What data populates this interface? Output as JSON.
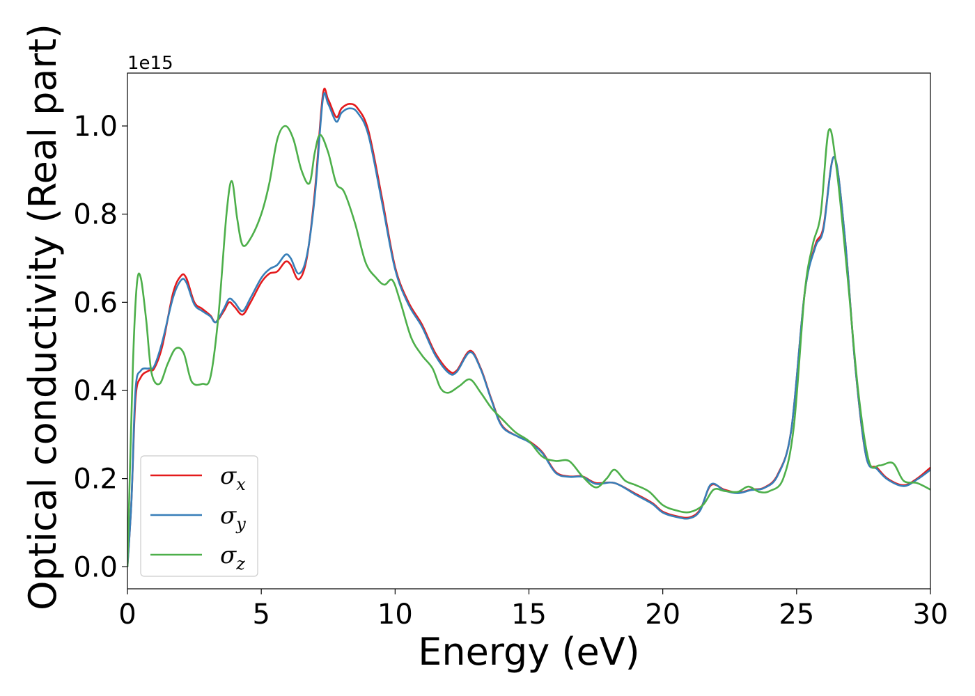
{
  "chart_data": {
    "type": "line",
    "xlabel": "Energy (eV)",
    "ylabel": "Optical conductivity (Real part)",
    "y_offset_text": "1e15",
    "xlim": [
      0,
      30
    ],
    "ylim": [
      -0.05,
      1.12
    ],
    "xticks": [
      0,
      5,
      10,
      15,
      20,
      25,
      30
    ],
    "xtick_labels": [
      "0",
      "5",
      "10",
      "15",
      "20",
      "25",
      "30"
    ],
    "yticks": [
      0.0,
      0.2,
      0.4,
      0.6,
      0.8,
      1.0
    ],
    "ytick_labels": [
      "0.0",
      "0.2",
      "0.4",
      "0.6",
      "0.8",
      "1.0"
    ],
    "grid": false,
    "legend_position": "lower-left",
    "series": [
      {
        "name": "σ",
        "subscript": "x",
        "color": "#e41a1c",
        "points": [
          [
            0,
            0
          ],
          [
            0.15,
            0.15
          ],
          [
            0.3,
            0.38
          ],
          [
            0.5,
            0.43
          ],
          [
            0.8,
            0.445
          ],
          [
            1.0,
            0.45
          ],
          [
            1.3,
            0.5
          ],
          [
            1.7,
            0.62
          ],
          [
            2.0,
            0.66
          ],
          [
            2.2,
            0.655
          ],
          [
            2.5,
            0.6
          ],
          [
            2.8,
            0.585
          ],
          [
            3.1,
            0.57
          ],
          [
            3.3,
            0.555
          ],
          [
            3.6,
            0.58
          ],
          [
            3.8,
            0.6
          ],
          [
            4.0,
            0.59
          ],
          [
            4.3,
            0.572
          ],
          [
            4.6,
            0.6
          ],
          [
            5.0,
            0.645
          ],
          [
            5.3,
            0.665
          ],
          [
            5.6,
            0.67
          ],
          [
            5.9,
            0.692
          ],
          [
            6.1,
            0.685
          ],
          [
            6.4,
            0.652
          ],
          [
            6.7,
            0.7
          ],
          [
            7.0,
            0.85
          ],
          [
            7.3,
            1.07
          ],
          [
            7.5,
            1.06
          ],
          [
            7.8,
            1.02
          ],
          [
            8.0,
            1.04
          ],
          [
            8.3,
            1.05
          ],
          [
            8.6,
            1.04
          ],
          [
            9.0,
            0.99
          ],
          [
            9.5,
            0.84
          ],
          [
            10.0,
            0.68
          ],
          [
            10.5,
            0.6
          ],
          [
            11.0,
            0.55
          ],
          [
            11.5,
            0.485
          ],
          [
            12.0,
            0.445
          ],
          [
            12.3,
            0.445
          ],
          [
            12.8,
            0.49
          ],
          [
            13.2,
            0.45
          ],
          [
            13.6,
            0.38
          ],
          [
            14.0,
            0.32
          ],
          [
            14.6,
            0.295
          ],
          [
            15.0,
            0.285
          ],
          [
            15.5,
            0.26
          ],
          [
            16.0,
            0.215
          ],
          [
            16.5,
            0.205
          ],
          [
            17.0,
            0.205
          ],
          [
            17.5,
            0.19
          ],
          [
            18.2,
            0.19
          ],
          [
            19.0,
            0.165
          ],
          [
            19.6,
            0.145
          ],
          [
            20.0,
            0.125
          ],
          [
            20.5,
            0.115
          ],
          [
            21.0,
            0.112
          ],
          [
            21.4,
            0.13
          ],
          [
            21.8,
            0.185
          ],
          [
            22.3,
            0.175
          ],
          [
            22.8,
            0.168
          ],
          [
            23.3,
            0.175
          ],
          [
            23.8,
            0.18
          ],
          [
            24.3,
            0.21
          ],
          [
            24.8,
            0.31
          ],
          [
            25.3,
            0.62
          ],
          [
            25.7,
            0.73
          ],
          [
            26.0,
            0.77
          ],
          [
            26.4,
            0.93
          ],
          [
            26.8,
            0.75
          ],
          [
            27.2,
            0.45
          ],
          [
            27.6,
            0.25
          ],
          [
            28.0,
            0.225
          ],
          [
            28.4,
            0.2
          ],
          [
            29.0,
            0.185
          ],
          [
            29.5,
            0.2
          ],
          [
            30.0,
            0.225
          ]
        ]
      },
      {
        "name": "σ",
        "subscript": "y",
        "color": "#377eb8",
        "points": [
          [
            0,
            0
          ],
          [
            0.15,
            0.15
          ],
          [
            0.3,
            0.4
          ],
          [
            0.5,
            0.445
          ],
          [
            0.8,
            0.45
          ],
          [
            1.0,
            0.455
          ],
          [
            1.3,
            0.51
          ],
          [
            1.7,
            0.61
          ],
          [
            2.0,
            0.65
          ],
          [
            2.2,
            0.645
          ],
          [
            2.5,
            0.595
          ],
          [
            2.8,
            0.58
          ],
          [
            3.1,
            0.568
          ],
          [
            3.3,
            0.555
          ],
          [
            3.6,
            0.585
          ],
          [
            3.8,
            0.608
          ],
          [
            4.0,
            0.6
          ],
          [
            4.3,
            0.58
          ],
          [
            4.6,
            0.61
          ],
          [
            5.0,
            0.655
          ],
          [
            5.3,
            0.675
          ],
          [
            5.6,
            0.685
          ],
          [
            5.9,
            0.708
          ],
          [
            6.1,
            0.7
          ],
          [
            6.4,
            0.665
          ],
          [
            6.7,
            0.705
          ],
          [
            7.0,
            0.84
          ],
          [
            7.3,
            1.06
          ],
          [
            7.5,
            1.05
          ],
          [
            7.8,
            1.01
          ],
          [
            8.0,
            1.03
          ],
          [
            8.3,
            1.04
          ],
          [
            8.6,
            1.03
          ],
          [
            9.0,
            0.98
          ],
          [
            9.5,
            0.83
          ],
          [
            10.0,
            0.675
          ],
          [
            10.5,
            0.595
          ],
          [
            11.0,
            0.545
          ],
          [
            11.5,
            0.48
          ],
          [
            12.0,
            0.44
          ],
          [
            12.3,
            0.442
          ],
          [
            12.8,
            0.487
          ],
          [
            13.2,
            0.448
          ],
          [
            13.6,
            0.378
          ],
          [
            14.0,
            0.318
          ],
          [
            14.6,
            0.295
          ],
          [
            15.0,
            0.283
          ],
          [
            15.5,
            0.258
          ],
          [
            16.0,
            0.213
          ],
          [
            16.5,
            0.204
          ],
          [
            17.0,
            0.204
          ],
          [
            17.5,
            0.188
          ],
          [
            18.2,
            0.19
          ],
          [
            19.0,
            0.163
          ],
          [
            19.6,
            0.143
          ],
          [
            20.0,
            0.123
          ],
          [
            20.5,
            0.113
          ],
          [
            21.0,
            0.11
          ],
          [
            21.4,
            0.128
          ],
          [
            21.8,
            0.187
          ],
          [
            22.3,
            0.173
          ],
          [
            22.8,
            0.167
          ],
          [
            23.3,
            0.174
          ],
          [
            23.8,
            0.179
          ],
          [
            24.3,
            0.208
          ],
          [
            24.8,
            0.31
          ],
          [
            25.3,
            0.62
          ],
          [
            25.7,
            0.725
          ],
          [
            26.0,
            0.765
          ],
          [
            26.4,
            0.93
          ],
          [
            26.8,
            0.75
          ],
          [
            27.2,
            0.45
          ],
          [
            27.6,
            0.25
          ],
          [
            28.0,
            0.222
          ],
          [
            28.4,
            0.198
          ],
          [
            29.0,
            0.183
          ],
          [
            29.5,
            0.198
          ],
          [
            30.0,
            0.22
          ]
        ]
      },
      {
        "name": "σ",
        "subscript": "z",
        "color": "#4daf4a",
        "points": [
          [
            0,
            0
          ],
          [
            0.2,
            0.45
          ],
          [
            0.35,
            0.64
          ],
          [
            0.5,
            0.655
          ],
          [
            0.7,
            0.56
          ],
          [
            0.9,
            0.44
          ],
          [
            1.2,
            0.415
          ],
          [
            1.5,
            0.46
          ],
          [
            1.8,
            0.495
          ],
          [
            2.1,
            0.485
          ],
          [
            2.4,
            0.42
          ],
          [
            2.8,
            0.415
          ],
          [
            3.1,
            0.43
          ],
          [
            3.4,
            0.57
          ],
          [
            3.7,
            0.8
          ],
          [
            3.9,
            0.875
          ],
          [
            4.1,
            0.79
          ],
          [
            4.3,
            0.73
          ],
          [
            4.6,
            0.745
          ],
          [
            5.0,
            0.8
          ],
          [
            5.3,
            0.87
          ],
          [
            5.6,
            0.97
          ],
          [
            5.9,
            1.0
          ],
          [
            6.2,
            0.97
          ],
          [
            6.5,
            0.9
          ],
          [
            6.8,
            0.87
          ],
          [
            7.0,
            0.94
          ],
          [
            7.2,
            0.98
          ],
          [
            7.5,
            0.94
          ],
          [
            7.8,
            0.87
          ],
          [
            8.1,
            0.85
          ],
          [
            8.5,
            0.78
          ],
          [
            8.9,
            0.69
          ],
          [
            9.3,
            0.655
          ],
          [
            9.6,
            0.64
          ],
          [
            9.9,
            0.65
          ],
          [
            10.2,
            0.6
          ],
          [
            10.6,
            0.52
          ],
          [
            11.0,
            0.48
          ],
          [
            11.4,
            0.45
          ],
          [
            11.7,
            0.405
          ],
          [
            12.0,
            0.395
          ],
          [
            12.4,
            0.41
          ],
          [
            12.8,
            0.425
          ],
          [
            13.2,
            0.395
          ],
          [
            13.6,
            0.36
          ],
          [
            14.0,
            0.335
          ],
          [
            14.5,
            0.305
          ],
          [
            15.0,
            0.285
          ],
          [
            15.5,
            0.25
          ],
          [
            16.0,
            0.24
          ],
          [
            16.5,
            0.24
          ],
          [
            17.0,
            0.205
          ],
          [
            17.5,
            0.18
          ],
          [
            17.9,
            0.2
          ],
          [
            18.2,
            0.22
          ],
          [
            18.6,
            0.195
          ],
          [
            19.0,
            0.185
          ],
          [
            19.5,
            0.17
          ],
          [
            20.0,
            0.14
          ],
          [
            20.5,
            0.128
          ],
          [
            21.0,
            0.124
          ],
          [
            21.5,
            0.14
          ],
          [
            21.9,
            0.175
          ],
          [
            22.3,
            0.172
          ],
          [
            22.8,
            0.17
          ],
          [
            23.2,
            0.182
          ],
          [
            23.6,
            0.17
          ],
          [
            24.0,
            0.172
          ],
          [
            24.5,
            0.2
          ],
          [
            24.9,
            0.32
          ],
          [
            25.3,
            0.62
          ],
          [
            25.6,
            0.73
          ],
          [
            25.9,
            0.8
          ],
          [
            26.2,
            0.99
          ],
          [
            26.5,
            0.9
          ],
          [
            26.9,
            0.66
          ],
          [
            27.3,
            0.4
          ],
          [
            27.7,
            0.24
          ],
          [
            28.1,
            0.23
          ],
          [
            28.6,
            0.235
          ],
          [
            29.0,
            0.195
          ],
          [
            29.5,
            0.19
          ],
          [
            30.0,
            0.175
          ]
        ]
      }
    ]
  }
}
